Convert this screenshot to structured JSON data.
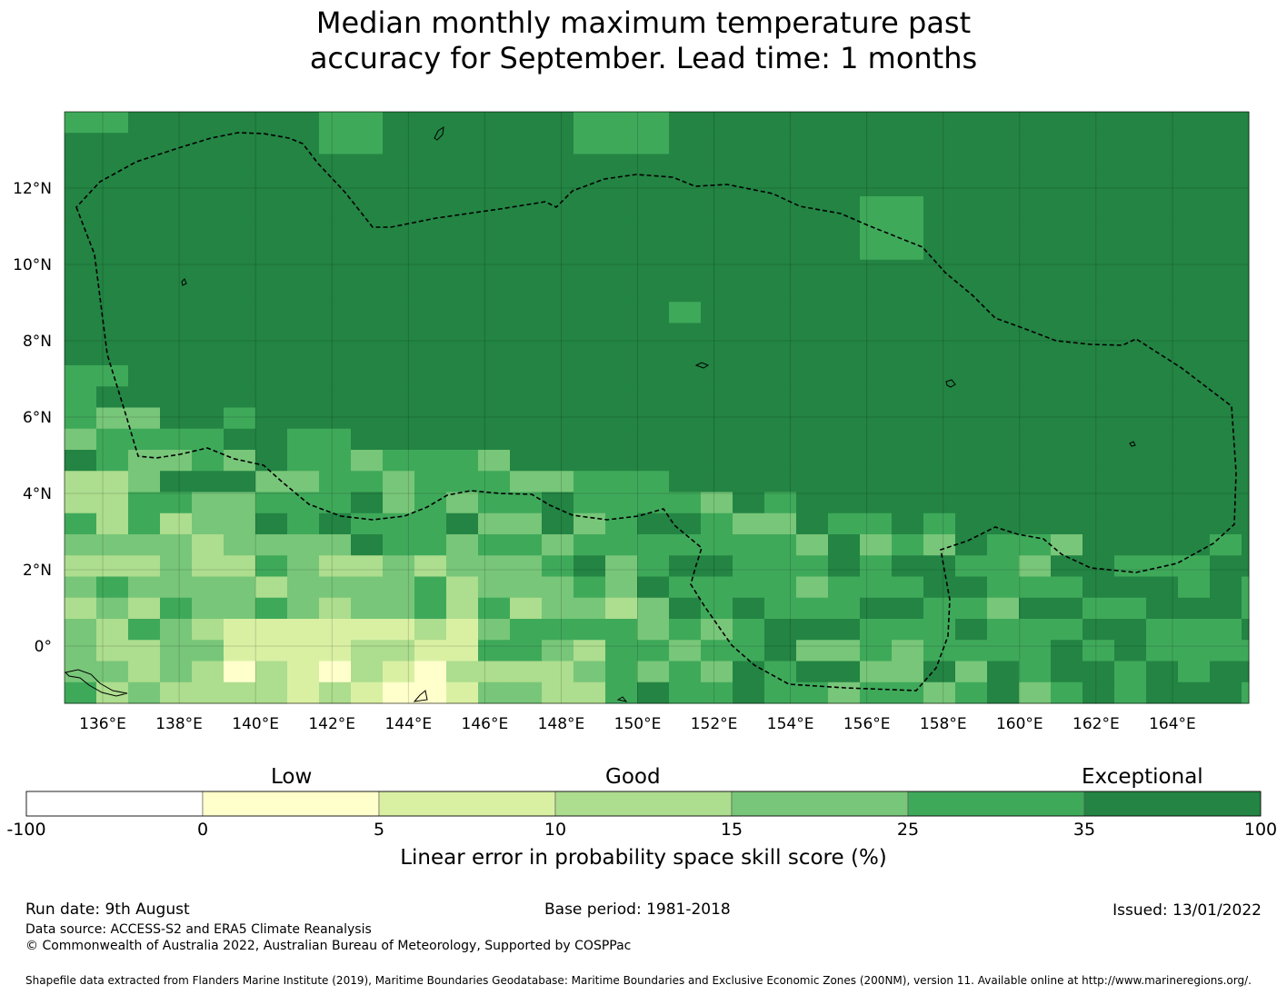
{
  "title_line1": "Median monthly maximum temperature past",
  "title_line2": "accuracy for September. Lead time: 1 months",
  "map": {
    "lon_range": [
      135,
      166
    ],
    "lat_range": [
      -1.5,
      14
    ],
    "lon_ticks": [
      "136°E",
      "138°E",
      "140°E",
      "142°E",
      "144°E",
      "146°E",
      "148°E",
      "150°E",
      "152°E",
      "154°E",
      "156°E",
      "158°E",
      "160°E",
      "162°E",
      "164°E"
    ],
    "lat_ticks": [
      "12°N",
      "10°N",
      "8°N",
      "6°N",
      "4°N",
      "2°N",
      "0°"
    ],
    "colors": {
      "exceptional_dark": "#238443",
      "good_high": "#3fa95a",
      "good_mid": "#78c679",
      "good_low": "#addd8e",
      "low_high": "#d9f0a3",
      "low": "#ffffcc",
      "none": "#ffffff"
    }
  },
  "colorbar": {
    "category_labels": [
      "Low",
      "Good",
      "Exceptional"
    ],
    "ticks": [
      "-100",
      "0",
      "5",
      "10",
      "15",
      "25",
      "35",
      "100"
    ],
    "colors": [
      "#ffffff",
      "#ffffcc",
      "#d9f0a3",
      "#addd8e",
      "#78c679",
      "#3fa95a",
      "#238443"
    ],
    "title": "Linear error in probability space skill score (%)"
  },
  "footer": {
    "run_date": "Run date: 9th August",
    "base_period": "Base period: 1981-2018",
    "issued": "Issued: 13/01/2022",
    "data_source": "Data source: ACCESS-S2 and ERA5 Climate Reanalysis",
    "copyright": "© Commonwealth of Australia 2022, Australian Bureau of Meteorology, Supported by COSPPac",
    "shapefile": "Shapefile data extracted from Flanders Marine Institute (2019), Maritime Boundaries Geodatabase: Maritime Boundaries and Exclusive Economic Zones (200NM), version 11. Available online at http://www.marineregions.org/."
  }
}
